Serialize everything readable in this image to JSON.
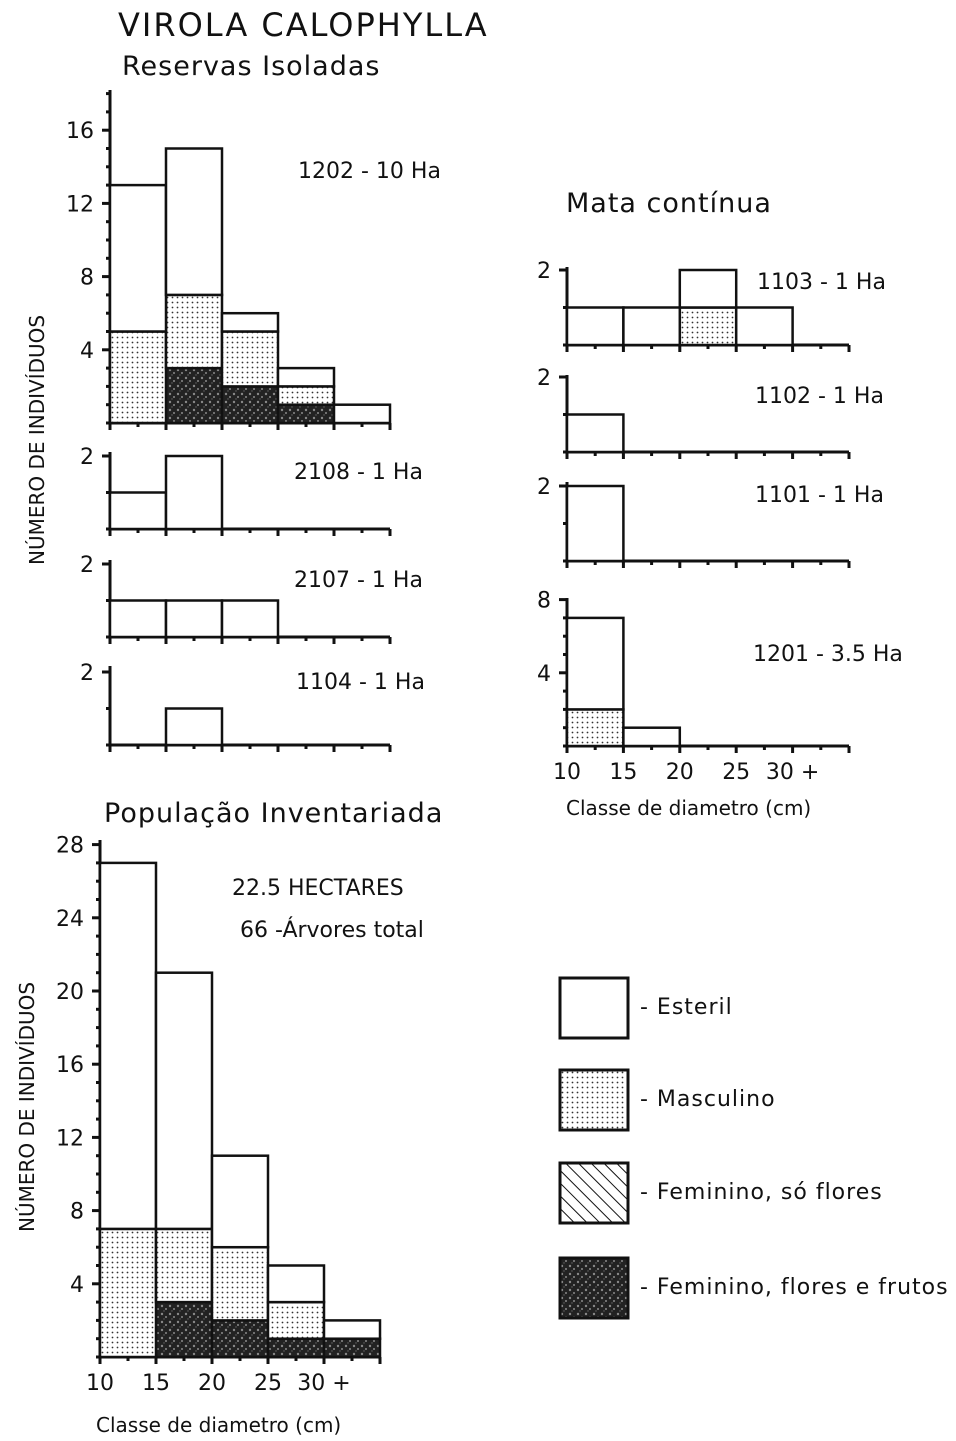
{
  "figure": {
    "title": "VIROLA CALOPHYLLA",
    "section_isoladas": "Reservas Isoladas",
    "section_continua": "Mata contínua",
    "section_populacao": "População Inventariada",
    "ylabel": "NÚMERO DE INDIVÍDUOS",
    "xlabel": "Classe de diametro (cm)",
    "total_hectares": "22.5 HECTARES",
    "total_trees": "66 -Árvores total"
  },
  "x_tick_labels": [
    "10",
    "15",
    "20",
    "25",
    "30 +"
  ],
  "legend": [
    {
      "key": "esteril",
      "label": "- Esteril",
      "pattern": "white"
    },
    {
      "key": "masculino",
      "label": "- Masculino",
      "pattern": "dots"
    },
    {
      "key": "fem_flores",
      "label": "- Feminino, só flores",
      "pattern": "hatch"
    },
    {
      "key": "fem_frutos",
      "label": "- Feminino, flores e frutos",
      "pattern": "dark"
    }
  ],
  "chart_data": [
    {
      "type": "bar",
      "stacked": true,
      "label": "1202 - 10 Ha",
      "categories": [
        "10-15",
        "15-20",
        "20-25",
        "25-30",
        "30+"
      ],
      "ylim": [
        0,
        18
      ],
      "yticks": [
        "4",
        "8",
        "12",
        "16"
      ],
      "ytick_values": [
        4,
        8,
        12,
        16
      ],
      "series": [
        {
          "key": "fem_frutos",
          "values": [
            0,
            3,
            2,
            1,
            0
          ]
        },
        {
          "key": "masculino",
          "values": [
            5,
            4,
            3,
            1,
            0
          ]
        },
        {
          "key": "esteril",
          "values": [
            8,
            8,
            1,
            1,
            1
          ]
        }
      ]
    },
    {
      "type": "bar",
      "stacked": true,
      "label": "2108 - 1 Ha",
      "categories": [
        "10-15",
        "15-20",
        "20-25",
        "25-30",
        "30+"
      ],
      "ylim": [
        0,
        2
      ],
      "yticks": [
        "2"
      ],
      "ytick_values": [
        2
      ],
      "series": [
        {
          "key": "esteril",
          "values": [
            1,
            2,
            0,
            0,
            0
          ]
        }
      ]
    },
    {
      "type": "bar",
      "stacked": true,
      "label": "2107 - 1 Ha",
      "categories": [
        "10-15",
        "15-20",
        "20-25",
        "25-30",
        "30+"
      ],
      "ylim": [
        0,
        2
      ],
      "yticks": [
        "2"
      ],
      "ytick_values": [
        2
      ],
      "series": [
        {
          "key": "esteril",
          "values": [
            1,
            1,
            1,
            0,
            0
          ]
        }
      ]
    },
    {
      "type": "bar",
      "stacked": true,
      "label": "1104 - 1 Ha",
      "categories": [
        "10-15",
        "15-20",
        "20-25",
        "25-30",
        "30+"
      ],
      "ylim": [
        0,
        2
      ],
      "yticks": [
        "2"
      ],
      "ytick_values": [
        2
      ],
      "series": [
        {
          "key": "esteril",
          "values": [
            0,
            1,
            0,
            0,
            0
          ]
        }
      ]
    },
    {
      "type": "bar",
      "stacked": true,
      "label": "1103 - 1 Ha",
      "categories": [
        "10-15",
        "15-20",
        "20-25",
        "25-30",
        "30+"
      ],
      "ylim": [
        0,
        2
      ],
      "yticks": [
        "2"
      ],
      "ytick_values": [
        2
      ],
      "series": [
        {
          "key": "masculino",
          "values": [
            0,
            0,
            1,
            0,
            0
          ]
        },
        {
          "key": "esteril",
          "values": [
            1,
            1,
            1,
            1,
            0
          ]
        }
      ]
    },
    {
      "type": "bar",
      "stacked": true,
      "label": "1102 - 1 Ha",
      "categories": [
        "10-15",
        "15-20",
        "20-25",
        "25-30",
        "30+"
      ],
      "ylim": [
        0,
        2
      ],
      "yticks": [
        "2"
      ],
      "ytick_values": [
        2
      ],
      "series": [
        {
          "key": "esteril",
          "values": [
            1,
            0,
            0,
            0,
            0
          ]
        }
      ]
    },
    {
      "type": "bar",
      "stacked": true,
      "label": "1101 - 1 Ha",
      "categories": [
        "10-15",
        "15-20",
        "20-25",
        "25-30",
        "30+"
      ],
      "ylim": [
        0,
        2
      ],
      "yticks": [
        "2"
      ],
      "ytick_values": [
        2
      ],
      "series": [
        {
          "key": "esteril",
          "values": [
            2,
            0,
            0,
            0,
            0
          ]
        }
      ]
    },
    {
      "type": "bar",
      "stacked": true,
      "label": "1201 - 3.5 Ha",
      "categories": [
        "10-15",
        "15-20",
        "20-25",
        "25-30",
        "30+"
      ],
      "ylim": [
        0,
        8
      ],
      "yticks": [
        "4",
        "8"
      ],
      "ytick_values": [
        4,
        8
      ],
      "series": [
        {
          "key": "masculino",
          "values": [
            2,
            0,
            0,
            0,
            0
          ]
        },
        {
          "key": "esteril",
          "values": [
            5,
            1,
            0,
            0,
            0
          ]
        }
      ]
    },
    {
      "type": "bar",
      "stacked": true,
      "label": "",
      "categories": [
        "10-15",
        "15-20",
        "20-25",
        "25-30",
        "30+"
      ],
      "ylim": [
        0,
        28
      ],
      "yticks": [
        "4",
        "8",
        "12",
        "16",
        "20",
        "24",
        "28"
      ],
      "ytick_values": [
        4,
        8,
        12,
        16,
        20,
        24,
        28
      ],
      "series": [
        {
          "key": "fem_frutos",
          "values": [
            0,
            3,
            2,
            1,
            1
          ]
        },
        {
          "key": "masculino",
          "values": [
            7,
            4,
            4,
            2,
            0
          ]
        },
        {
          "key": "esteril",
          "values": [
            20,
            14,
            5,
            2,
            1
          ]
        }
      ]
    }
  ]
}
